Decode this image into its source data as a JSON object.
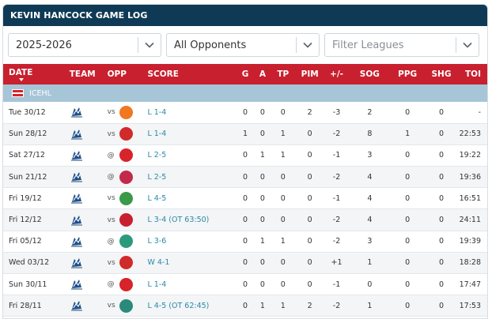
{
  "title": "KEVIN HANCOCK GAME LOG",
  "filters": {
    "season": "2025-2026",
    "opponents": "All Opponents",
    "leagues_placeholder": "Filter Leagues"
  },
  "columns": [
    "DATE",
    "TEAM",
    "OPP",
    "SCORE",
    "G",
    "A",
    "TP",
    "PIM",
    "+/-",
    "SOG",
    "PPG",
    "SHG",
    "TOI"
  ],
  "league": "ICEHL",
  "colors": {
    "header": "#0f3a55",
    "columns": "#c8202e",
    "league": "#a6c6d8",
    "score": "#2a8aa8"
  },
  "games": [
    {
      "date": "Tue 30/12",
      "venue": "vs",
      "opp_icon": "opp-99ers-logo",
      "opp_color": "#f07820",
      "score": "L 1-4",
      "g": "0",
      "a": "0",
      "tp": "0",
      "pim": "2",
      "pm": "-3",
      "sog": "2",
      "ppg": "0",
      "shg": "0",
      "toi": "-"
    },
    {
      "date": "Sun 28/12",
      "venue": "vs",
      "opp_icon": "opp-pioneers-logo",
      "opp_color": "#d12a2a",
      "score": "L 1-4",
      "g": "1",
      "a": "0",
      "tp": "1",
      "pim": "0",
      "pm": "-2",
      "sog": "8",
      "ppg": "1",
      "shg": "0",
      "toi": "22:53"
    },
    {
      "date": "Sat 27/12",
      "venue": "@",
      "opp_icon": "opp-kac-logo",
      "opp_color": "#d8232a",
      "score": "L 2-5",
      "g": "0",
      "a": "1",
      "tp": "1",
      "pim": "0",
      "pm": "-1",
      "sog": "3",
      "ppg": "0",
      "shg": "0",
      "toi": "19:22"
    },
    {
      "date": "Sun 21/12",
      "venue": "@",
      "opp_icon": "opp-capitals-logo",
      "opp_color": "#c22a4a",
      "score": "L 2-5",
      "g": "0",
      "a": "0",
      "tp": "0",
      "pim": "0",
      "pm": "-2",
      "sog": "4",
      "ppg": "0",
      "shg": "0",
      "toi": "19:36"
    },
    {
      "date": "Fri 19/12",
      "venue": "vs",
      "opp_icon": "opp-ferencvaros-logo",
      "opp_color": "#3a9a4a",
      "score": "L 4-5",
      "g": "0",
      "a": "0",
      "tp": "0",
      "pim": "0",
      "pm": "-1",
      "sog": "4",
      "ppg": "0",
      "shg": "0",
      "toi": "16:51"
    },
    {
      "date": "Fri 12/12",
      "venue": "vs",
      "opp_icon": "opp-redbull-logo",
      "opp_color": "#c8202e",
      "score": "L 3-4 (OT 63:50)",
      "g": "0",
      "a": "0",
      "tp": "0",
      "pim": "0",
      "pm": "-2",
      "sog": "4",
      "ppg": "0",
      "shg": "0",
      "toi": "24:11"
    },
    {
      "date": "Fri 05/12",
      "venue": "@",
      "opp_icon": "opp-olimpija-logo",
      "opp_color": "#2a9a7a",
      "score": "L 3-6",
      "g": "0",
      "a": "1",
      "tp": "1",
      "pim": "0",
      "pm": "-2",
      "sog": "3",
      "ppg": "0",
      "shg": "0",
      "toi": "19:39"
    },
    {
      "date": "Wed 03/12",
      "venue": "vs",
      "opp_icon": "opp-pioneers-logo",
      "opp_color": "#d12a2a",
      "score": "W 4-1",
      "g": "0",
      "a": "0",
      "tp": "0",
      "pim": "0",
      "pm": "+1",
      "sog": "1",
      "ppg": "0",
      "shg": "0",
      "toi": "18:28"
    },
    {
      "date": "Sun 30/11",
      "venue": "@",
      "opp_icon": "opp-kac-logo",
      "opp_color": "#d8232a",
      "score": "L 1-4",
      "g": "0",
      "a": "0",
      "tp": "0",
      "pim": "0",
      "pm": "-1",
      "sog": "0",
      "ppg": "0",
      "shg": "0",
      "toi": "17:47"
    },
    {
      "date": "Fri 28/11",
      "venue": "vs",
      "opp_icon": "opp-blackwings-logo",
      "opp_color": "#2a8a7a",
      "score": "L 4-5 (OT 62:45)",
      "g": "0",
      "a": "1",
      "tp": "1",
      "pim": "2",
      "pm": "-2",
      "sog": "1",
      "ppg": "0",
      "shg": "0",
      "toi": "17:53"
    }
  ]
}
